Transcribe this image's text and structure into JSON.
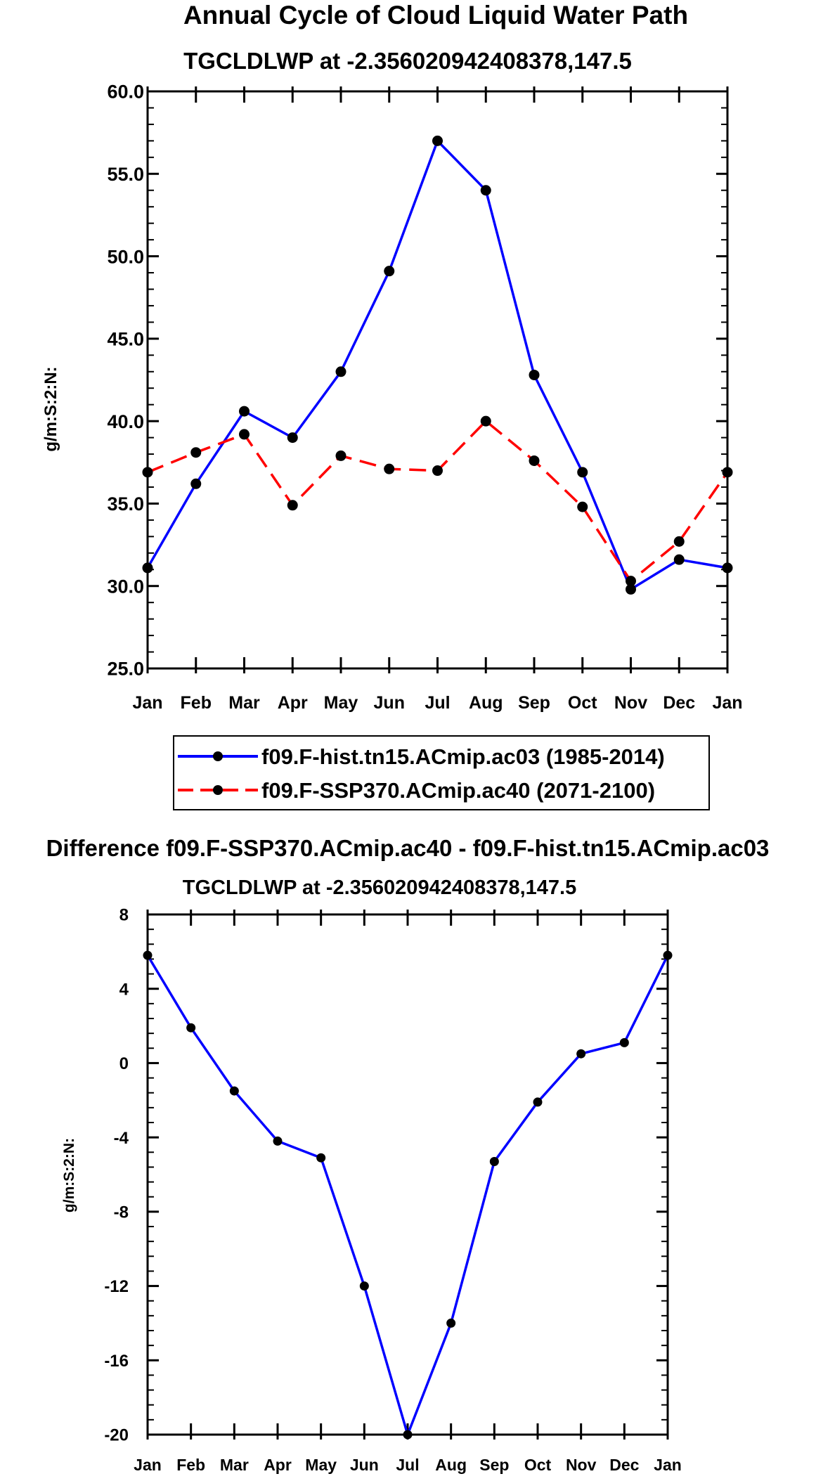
{
  "chart_data": [
    {
      "type": "line",
      "title": "Annual Cycle of Cloud Liquid Water Path",
      "subtitle": "TGCLDLWP at -2.356020942408378,147.5",
      "ylabel": "g/m:S:2:N:",
      "xlabel": "",
      "categories": [
        "Jan",
        "Feb",
        "Mar",
        "Apr",
        "May",
        "Jun",
        "Jul",
        "Aug",
        "Sep",
        "Oct",
        "Nov",
        "Dec",
        "Jan"
      ],
      "ylim": [
        25,
        60
      ],
      "yticks": [
        25,
        30,
        35,
        40,
        45,
        50,
        55,
        60
      ],
      "ytick_labels": [
        "25.0",
        "30.0",
        "35.0",
        "40.0",
        "45.0",
        "50.0",
        "55.0",
        "60.0"
      ],
      "series": [
        {
          "name": "f09.F-hist.tn15.ACmip.ac03 (1985-2014)",
          "color": "#0000ff",
          "dash": "solid",
          "values": [
            31.1,
            36.2,
            40.6,
            39.0,
            43.0,
            49.1,
            57.0,
            54.0,
            42.8,
            36.9,
            29.8,
            31.6,
            31.1
          ]
        },
        {
          "name": "f09.F-SSP370.ACmip.ac40 (2071-2100)",
          "color": "#ff0000",
          "dash": "dashed",
          "values": [
            36.9,
            38.1,
            39.2,
            34.9,
            37.9,
            37.1,
            37.0,
            40.0,
            37.6,
            34.8,
            30.3,
            32.7,
            36.9
          ]
        }
      ]
    },
    {
      "type": "line",
      "title": "Difference f09.F-SSP370.ACmip.ac40 - f09.F-hist.tn15.ACmip.ac03",
      "subtitle": "TGCLDLWP at -2.356020942408378,147.5",
      "ylabel": "g/m:S:2:N:",
      "xlabel": "",
      "categories": [
        "Jan",
        "Feb",
        "Mar",
        "Apr",
        "May",
        "Jun",
        "Jul",
        "Aug",
        "Sep",
        "Oct",
        "Nov",
        "Dec",
        "Jan"
      ],
      "ylim": [
        -20,
        8
      ],
      "yticks": [
        -20,
        -16,
        -12,
        -8,
        -4,
        0,
        4,
        8
      ],
      "ytick_labels": [
        "-20",
        "-16",
        "-12",
        "-8",
        "-4",
        "0",
        "4",
        "8"
      ],
      "series": [
        {
          "name": "Difference",
          "color": "#0000ff",
          "dash": "solid",
          "values": [
            5.8,
            1.9,
            -1.5,
            -4.2,
            -5.1,
            -12.0,
            -20.0,
            -14.0,
            -5.3,
            -2.1,
            0.5,
            1.1,
            5.8
          ]
        }
      ]
    }
  ]
}
